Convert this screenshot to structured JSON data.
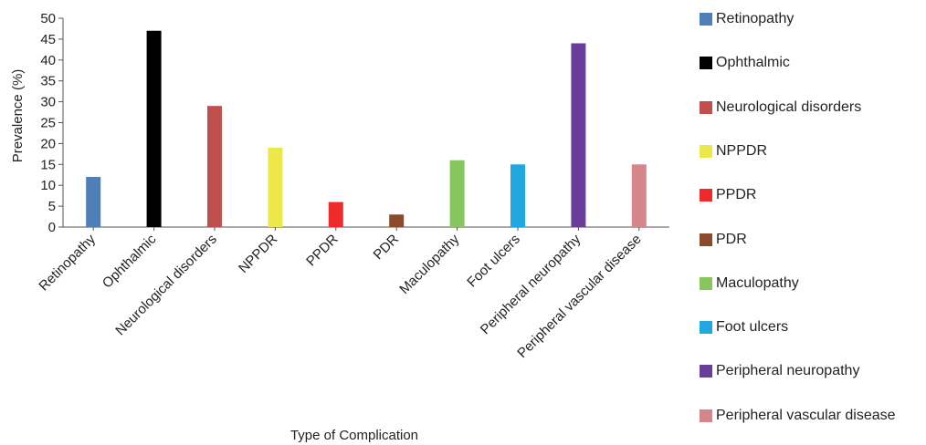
{
  "chart_data": {
    "type": "bar",
    "title": "",
    "xlabel": "Type of Complication",
    "ylabel": "Prevalence (%)",
    "ylim": [
      0,
      50
    ],
    "yticks": [
      0,
      5,
      10,
      15,
      20,
      25,
      30,
      35,
      40,
      45,
      50
    ],
    "grid": false,
    "legend_position": "right",
    "categories": [
      "Retinopathy",
      "Ophthalmic",
      "Neurological disorders",
      "NPPDR",
      "PPDR",
      "PDR",
      "Maculopathy",
      "Foot ulcers",
      "Peripheral neuropathy",
      "Peripheral vascular disease"
    ],
    "values": [
      12,
      47,
      29,
      19,
      6,
      3,
      16,
      15,
      44,
      15
    ],
    "colors": [
      "#4f7fb8",
      "#000000",
      "#c0504d",
      "#ece84a",
      "#ee2b2b",
      "#8b4a2b",
      "#86c65c",
      "#22a8e0",
      "#6a3d9a",
      "#d4868a"
    ]
  }
}
